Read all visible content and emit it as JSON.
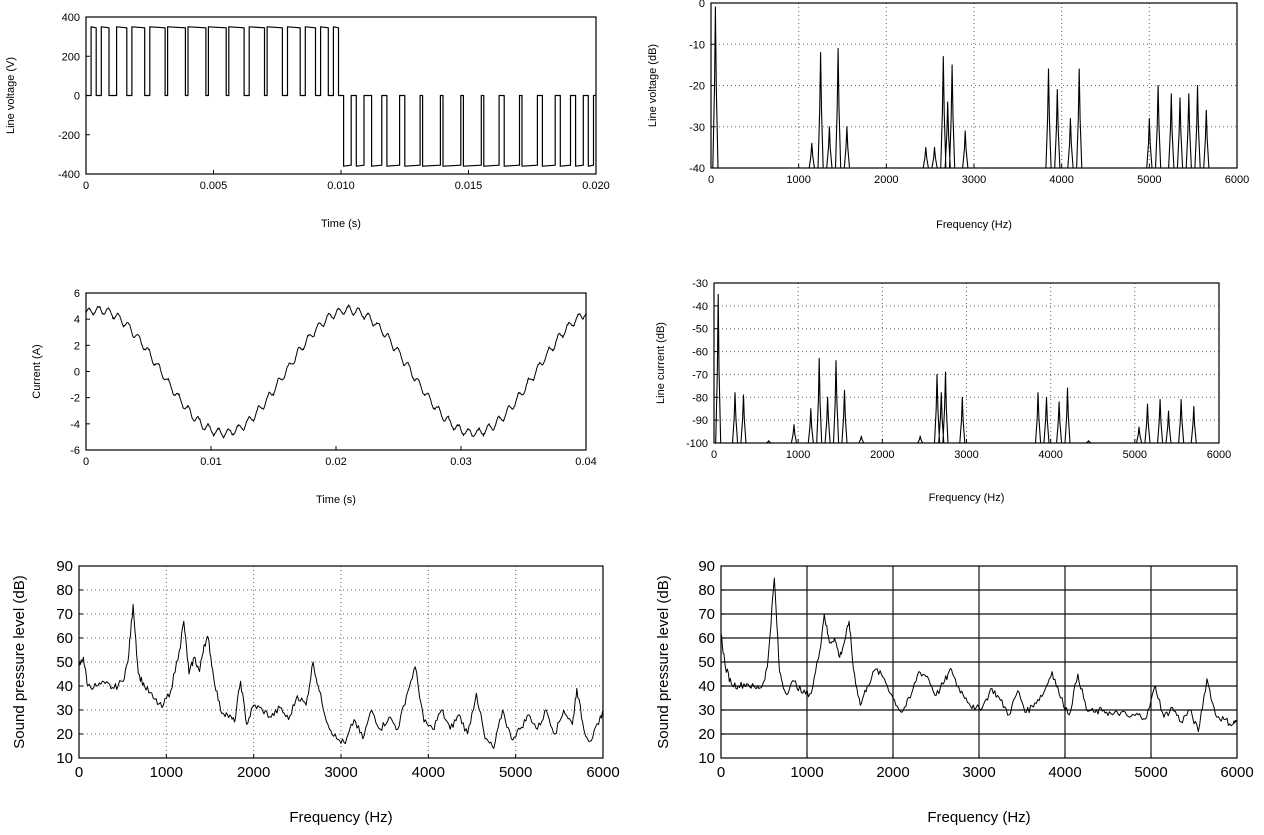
{
  "chart_data": [
    {
      "type": "line",
      "xlabel": "Time (s)",
      "ylabel": "Line voltage (V)",
      "xlim": [
        0,
        0.02
      ],
      "ylim": [
        -400,
        400
      ],
      "xticks": [
        0,
        0.005,
        0.01,
        0.015,
        0.02
      ],
      "xtick_labels": [
        "0",
        "0.005",
        "0.010",
        "0.015",
        "0.020"
      ],
      "yticks": [
        -400,
        -200,
        0,
        200,
        400
      ],
      "ytick_labels": [
        "-400",
        "-200",
        "0",
        "200",
        "400"
      ],
      "grid": false,
      "series": [
        {
          "description_pulses": "PWM line-to-line voltage: positive pulses (~+350 V) during first half period, negative pulses (~-360 V) during second half",
          "positive_pulses": [
            [
              0.0002,
              0.0004
            ],
            [
              0.0006,
              0.0009
            ],
            [
              0.0012,
              0.0016
            ],
            [
              0.0018,
              0.0023
            ],
            [
              0.0025,
              0.0031
            ],
            [
              0.0032,
              0.0039
            ],
            [
              0.004,
              0.0047
            ],
            [
              0.0048,
              0.0055
            ],
            [
              0.0056,
              0.0062
            ],
            [
              0.0064,
              0.007
            ],
            [
              0.0071,
              0.0077
            ],
            [
              0.0079,
              0.0084
            ],
            [
              0.0086,
              0.009
            ],
            [
              0.0092,
              0.0095
            ],
            [
              0.0097,
              0.0099
            ]
          ],
          "negative_pulses": [
            [
              0.0101,
              0.0104
            ],
            [
              0.0106,
              0.0109
            ],
            [
              0.0112,
              0.0116
            ],
            [
              0.0118,
              0.0123
            ],
            [
              0.0125,
              0.0131
            ],
            [
              0.0132,
              0.0139
            ],
            [
              0.014,
              0.0147
            ],
            [
              0.0148,
              0.0155
            ],
            [
              0.0156,
              0.0162
            ],
            [
              0.0164,
              0.017
            ],
            [
              0.0171,
              0.0177
            ],
            [
              0.0179,
              0.0184
            ],
            [
              0.0186,
              0.019
            ],
            [
              0.0192,
              0.0195
            ],
            [
              0.0197,
              0.0199
            ]
          ],
          "amplitude_positive": 350,
          "amplitude_negative": -360
        }
      ]
    },
    {
      "type": "line",
      "xlabel": "Frequency (Hz)",
      "ylabel": "Line voltage (dB)",
      "xlim": [
        0,
        6000
      ],
      "ylim": [
        -40,
        0
      ],
      "xticks": [
        0,
        1000,
        2000,
        3000,
        4000,
        5000,
        6000
      ],
      "xtick_labels": [
        "0",
        "1000",
        "2000",
        "3000",
        "4000",
        "5000",
        "6000"
      ],
      "yticks": [
        -40,
        -30,
        -20,
        -10,
        0
      ],
      "ytick_labels": [
        "-40",
        "-30",
        "-20",
        "-10",
        "0"
      ],
      "grid": "dotted",
      "floor": -40,
      "peaks": [
        [
          50,
          -1
        ],
        [
          1150,
          -34
        ],
        [
          1250,
          -12
        ],
        [
          1350,
          -30
        ],
        [
          1450,
          -11
        ],
        [
          1550,
          -30
        ],
        [
          2450,
          -35
        ],
        [
          2550,
          -35
        ],
        [
          2650,
          -13
        ],
        [
          2700,
          -24
        ],
        [
          2750,
          -15
        ],
        [
          2900,
          -31
        ],
        [
          3850,
          -16
        ],
        [
          3950,
          -21
        ],
        [
          4100,
          -28
        ],
        [
          4200,
          -16
        ],
        [
          5000,
          -28
        ],
        [
          5100,
          -20
        ],
        [
          5250,
          -22
        ],
        [
          5350,
          -23
        ],
        [
          5450,
          -22
        ],
        [
          5550,
          -20
        ],
        [
          5650,
          -26
        ]
      ]
    },
    {
      "type": "line",
      "xlabel": "Time (s)",
      "ylabel": "Current (A)",
      "xlim": [
        0,
        0.04
      ],
      "ylim": [
        -6,
        6
      ],
      "xticks": [
        0,
        0.01,
        0.02,
        0.03,
        0.04
      ],
      "xtick_labels": [
        "0",
        "0.01",
        "0.02",
        "0.03",
        "0.04"
      ],
      "yticks": [
        -6,
        -4,
        -2,
        0,
        2,
        4,
        6
      ],
      "ytick_labels": [
        "-6",
        "-4",
        "-2",
        "0",
        "2",
        "4",
        "6"
      ],
      "grid": false,
      "series": [
        {
          "waveform": "sine with ripple",
          "amplitude": 4.7,
          "frequency_hz": 50,
          "phase_offset_s": 0.0065,
          "ripple_amplitude": 0.4
        }
      ]
    },
    {
      "type": "line",
      "xlabel": "Frequency (Hz)",
      "ylabel": "Line current (dB)",
      "xlim": [
        0,
        6000
      ],
      "ylim": [
        -100,
        -30
      ],
      "xticks": [
        0,
        1000,
        2000,
        3000,
        4000,
        5000,
        6000
      ],
      "xtick_labels": [
        "0",
        "1000",
        "2000",
        "3000",
        "4000",
        "5000",
        "6000"
      ],
      "yticks": [
        -100,
        -90,
        -80,
        -70,
        -60,
        -50,
        -40,
        -30
      ],
      "ytick_labels": [
        "-100",
        "-90",
        "-80",
        "-70",
        "-60",
        "-50",
        "-40",
        "-30"
      ],
      "grid": "dotted",
      "floor": -100,
      "peaks": [
        [
          50,
          -35
        ],
        [
          250,
          -78
        ],
        [
          350,
          -79
        ],
        [
          650,
          -99
        ],
        [
          950,
          -92
        ],
        [
          1150,
          -85
        ],
        [
          1250,
          -63
        ],
        [
          1350,
          -80
        ],
        [
          1450,
          -64
        ],
        [
          1550,
          -77
        ],
        [
          1750,
          -97
        ],
        [
          2450,
          -97
        ],
        [
          2650,
          -70
        ],
        [
          2700,
          -78
        ],
        [
          2750,
          -69
        ],
        [
          2950,
          -80
        ],
        [
          3850,
          -78
        ],
        [
          3950,
          -80
        ],
        [
          4100,
          -82
        ],
        [
          4200,
          -76
        ],
        [
          4450,
          -99
        ],
        [
          5050,
          -93
        ],
        [
          5150,
          -83
        ],
        [
          5300,
          -81
        ],
        [
          5400,
          -86
        ],
        [
          5550,
          -81
        ],
        [
          5700,
          -84
        ]
      ]
    },
    {
      "type": "line",
      "xlabel": "Frequency (Hz)",
      "ylabel": "Sound pressure level (dB)",
      "xlim": [
        0,
        6000
      ],
      "ylim": [
        10,
        90
      ],
      "xticks": [
        0,
        1000,
        2000,
        3000,
        4000,
        5000,
        6000
      ],
      "xtick_labels": [
        "0",
        "1000",
        "2000",
        "3000",
        "4000",
        "5000",
        "6000"
      ],
      "yticks": [
        10,
        20,
        30,
        40,
        50,
        60,
        70,
        80,
        90
      ],
      "ytick_labels": [
        "10",
        "20",
        "30",
        "40",
        "50",
        "60",
        "70",
        "80",
        "90"
      ],
      "grid": "dotted",
      "series": [
        {
          "points": [
            [
              0,
              48
            ],
            [
              50,
              52
            ],
            [
              100,
              40
            ],
            [
              200,
              40
            ],
            [
              300,
              41
            ],
            [
              400,
              39
            ],
            [
              500,
              42
            ],
            [
              560,
              50
            ],
            [
              620,
              74
            ],
            [
              680,
              45
            ],
            [
              750,
              40
            ],
            [
              850,
              35
            ],
            [
              950,
              31
            ],
            [
              1050,
              38
            ],
            [
              1150,
              55
            ],
            [
              1200,
              67
            ],
            [
              1260,
              45
            ],
            [
              1320,
              52
            ],
            [
              1380,
              46
            ],
            [
              1430,
              57
            ],
            [
              1480,
              60
            ],
            [
              1540,
              44
            ],
            [
              1620,
              30
            ],
            [
              1700,
              28
            ],
            [
              1780,
              25
            ],
            [
              1850,
              42
            ],
            [
              1920,
              24
            ],
            [
              2000,
              32
            ],
            [
              2100,
              30
            ],
            [
              2200,
              27
            ],
            [
              2300,
              31
            ],
            [
              2400,
              26
            ],
            [
              2500,
              36
            ],
            [
              2600,
              32
            ],
            [
              2680,
              50
            ],
            [
              2750,
              38
            ],
            [
              2850,
              24
            ],
            [
              2950,
              18
            ],
            [
              3050,
              16
            ],
            [
              3150,
              26
            ],
            [
              3250,
              18
            ],
            [
              3350,
              30
            ],
            [
              3450,
              22
            ],
            [
              3550,
              27
            ],
            [
              3650,
              22
            ],
            [
              3750,
              36
            ],
            [
              3850,
              48
            ],
            [
              3950,
              25
            ],
            [
              4050,
              22
            ],
            [
              4150,
              30
            ],
            [
              4250,
              22
            ],
            [
              4350,
              28
            ],
            [
              4450,
              20
            ],
            [
              4550,
              37
            ],
            [
              4650,
              18
            ],
            [
              4750,
              14
            ],
            [
              4850,
              30
            ],
            [
              4950,
              18
            ],
            [
              5050,
              22
            ],
            [
              5150,
              28
            ],
            [
              5250,
              22
            ],
            [
              5350,
              30
            ],
            [
              5450,
              20
            ],
            [
              5550,
              30
            ],
            [
              5650,
              24
            ],
            [
              5700,
              39
            ],
            [
              5780,
              22
            ],
            [
              5850,
              17
            ],
            [
              5950,
              24
            ],
            [
              6000,
              30
            ]
          ]
        }
      ]
    },
    {
      "type": "line",
      "xlabel": "Frequency (Hz)",
      "ylabel": "Sound pressure level (dB)",
      "xlim": [
        0,
        6000
      ],
      "ylim": [
        10,
        90
      ],
      "xticks": [
        0,
        1000,
        2000,
        3000,
        4000,
        5000,
        6000
      ],
      "xtick_labels": [
        "0",
        "1000",
        "2000",
        "3000",
        "4000",
        "5000",
        "6000"
      ],
      "yticks": [
        10,
        20,
        30,
        40,
        50,
        60,
        70,
        80,
        90
      ],
      "ytick_labels": [
        "10",
        "20",
        "30",
        "40",
        "50",
        "60",
        "70",
        "80",
        "90"
      ],
      "grid": "solid",
      "series": [
        {
          "points": [
            [
              0,
              62
            ],
            [
              50,
              48
            ],
            [
              120,
              41
            ],
            [
              200,
              40
            ],
            [
              300,
              41
            ],
            [
              400,
              39
            ],
            [
              480,
              40
            ],
            [
              540,
              48
            ],
            [
              620,
              85
            ],
            [
              680,
              46
            ],
            [
              750,
              37
            ],
            [
              850,
              42
            ],
            [
              950,
              37
            ],
            [
              1050,
              37
            ],
            [
              1150,
              55
            ],
            [
              1200,
              70
            ],
            [
              1260,
              58
            ],
            [
              1320,
              60
            ],
            [
              1380,
              52
            ],
            [
              1440,
              59
            ],
            [
              1490,
              67
            ],
            [
              1540,
              47
            ],
            [
              1620,
              32
            ],
            [
              1700,
              40
            ],
            [
              1800,
              47
            ],
            [
              1900,
              43
            ],
            [
              2000,
              35
            ],
            [
              2100,
              29
            ],
            [
              2200,
              35
            ],
            [
              2300,
              46
            ],
            [
              2400,
              44
            ],
            [
              2500,
              36
            ],
            [
              2600,
              42
            ],
            [
              2680,
              47
            ],
            [
              2750,
              40
            ],
            [
              2850,
              35
            ],
            [
              2950,
              30
            ],
            [
              3050,
              32
            ],
            [
              3150,
              39
            ],
            [
              3250,
              34
            ],
            [
              3350,
              28
            ],
            [
              3450,
              38
            ],
            [
              3550,
              29
            ],
            [
              3650,
              33
            ],
            [
              3750,
              37
            ],
            [
              3850,
              46
            ],
            [
              3950,
              35
            ],
            [
              4050,
              28
            ],
            [
              4150,
              45
            ],
            [
              4250,
              30
            ],
            [
              4350,
              29
            ],
            [
              4450,
              30
            ],
            [
              4550,
              28
            ],
            [
              4650,
              29
            ],
            [
              4750,
              27
            ],
            [
              4850,
              28
            ],
            [
              4950,
              27
            ],
            [
              5050,
              40
            ],
            [
              5150,
              27
            ],
            [
              5250,
              31
            ],
            [
              5350,
              25
            ],
            [
              5450,
              30
            ],
            [
              5550,
              21
            ],
            [
              5650,
              43
            ],
            [
              5750,
              28
            ],
            [
              5850,
              26
            ],
            [
              5950,
              24
            ],
            [
              6000,
              26
            ]
          ]
        }
      ]
    }
  ]
}
